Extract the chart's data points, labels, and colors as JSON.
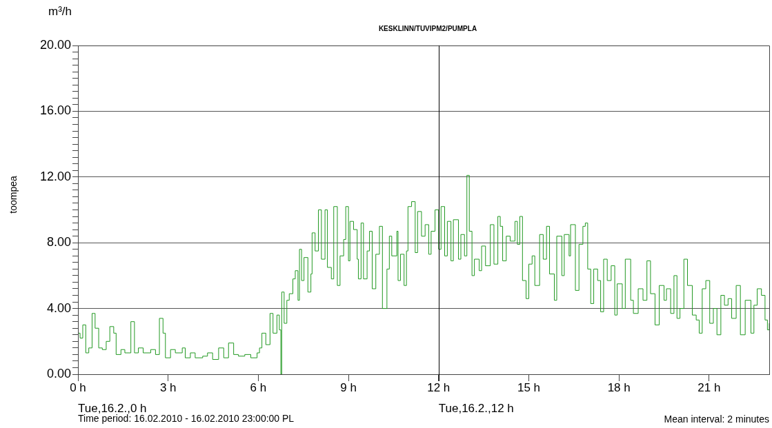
{
  "chart_data": {
    "type": "step",
    "title": "KESKLINN/TUVIPM2/PUMPLA",
    "ylabel": "toompea",
    "annotations": [
      "Tue,16.2.,0 h",
      "Tue,16.2.,12 h",
      "Time period: 16.02.2010 - 16.02.2010 23:00:00 PL",
      "Mean interval: 2 minutes",
      "m³/h"
    ],
    "xlim": [
      0,
      23
    ],
    "xticks": [
      {
        "value": 0,
        "label": "0 h"
      },
      {
        "value": 3,
        "label": "3 h"
      },
      {
        "value": 6,
        "label": "6 h"
      },
      {
        "value": 9,
        "label": "9 h"
      },
      {
        "value": 12,
        "label": "12 h"
      },
      {
        "value": 15,
        "label": "15 h"
      },
      {
        "value": 18,
        "label": "18 h"
      },
      {
        "value": 21,
        "label": "21 h"
      }
    ],
    "ylim": [
      0,
      20
    ],
    "yticks": [
      {
        "value": 0,
        "label": "0.00"
      },
      {
        "value": 0.4,
        "label": null
      },
      {
        "value": 0.8,
        "label": null
      },
      {
        "value": 1.2,
        "label": null
      },
      {
        "value": 1.6,
        "label": null
      },
      {
        "value": 2,
        "label": null
      },
      {
        "value": 2.4,
        "label": null
      },
      {
        "value": 2.8,
        "label": null
      },
      {
        "value": 3.2,
        "label": null
      },
      {
        "value": 3.6,
        "label": null
      },
      {
        "value": 4,
        "label": "4.00"
      },
      {
        "value": 4.4,
        "label": null
      },
      {
        "value": 4.8,
        "label": null
      },
      {
        "value": 5.2,
        "label": null
      },
      {
        "value": 5.6,
        "label": null
      },
      {
        "value": 6,
        "label": null
      },
      {
        "value": 6.4,
        "label": null
      },
      {
        "value": 6.8,
        "label": null
      },
      {
        "value": 7.2,
        "label": null
      },
      {
        "value": 7.6,
        "label": null
      },
      {
        "value": 8,
        "label": "8.00"
      },
      {
        "value": 8.4,
        "label": null
      },
      {
        "value": 8.8,
        "label": null
      },
      {
        "value": 9.2,
        "label": null
      },
      {
        "value": 9.6,
        "label": null
      },
      {
        "value": 10,
        "label": null
      },
      {
        "value": 10.4,
        "label": null
      },
      {
        "value": 10.8,
        "label": null
      },
      {
        "value": 11.2,
        "label": null
      },
      {
        "value": 11.6,
        "label": null
      },
      {
        "value": 12,
        "label": "12.00"
      },
      {
        "value": 12.4,
        "label": null
      },
      {
        "value": 12.8,
        "label": null
      },
      {
        "value": 13.2,
        "label": null
      },
      {
        "value": 13.6,
        "label": null
      },
      {
        "value": 14,
        "label": null
      },
      {
        "value": 14.4,
        "label": null
      },
      {
        "value": 14.8,
        "label": null
      },
      {
        "value": 15.2,
        "label": null
      },
      {
        "value": 15.6,
        "label": null
      },
      {
        "value": 16,
        "label": "16.00"
      },
      {
        "value": 16.4,
        "label": null
      },
      {
        "value": 16.8,
        "label": null
      },
      {
        "value": 17.2,
        "label": null
      },
      {
        "value": 17.6,
        "label": null
      },
      {
        "value": 18,
        "label": null
      },
      {
        "value": 18.4,
        "label": null
      },
      {
        "value": 18.8,
        "label": null
      },
      {
        "value": 19.2,
        "label": null
      },
      {
        "value": 19.6,
        "label": null
      },
      {
        "value": 20,
        "label": "20.00"
      }
    ],
    "grid": "y",
    "legend": false,
    "ref_lines": [
      {
        "axis": "x",
        "value": 12,
        "color": "#000000"
      }
    ],
    "series": [
      {
        "color": "#229922",
        "x": [
          0,
          0.07,
          0.16,
          0.26,
          0.36,
          0.47,
          0.57,
          0.69,
          0.81,
          0.94,
          1.06,
          1.19,
          1.27,
          1.43,
          1.56,
          1.76,
          1.88,
          2.01,
          2.17,
          2.42,
          2.58,
          2.71,
          2.83,
          2.91,
          3.08,
          3.24,
          3.47,
          3.57,
          3.74,
          3.9,
          4.15,
          4.31,
          4.48,
          4.68,
          4.85,
          5.01,
          5.18,
          5.34,
          5.55,
          5.75,
          5.96,
          6.04,
          6.12,
          6.25,
          6.39,
          6.49,
          6.62,
          6.7,
          6.75,
          6.78,
          6.86,
          6.95,
          7.03,
          7.15,
          7.23,
          7.32,
          7.37,
          7.44,
          7.52,
          7.65,
          7.75,
          7.79,
          7.89,
          8,
          8.1,
          8.22,
          8.3,
          8.43,
          8.51,
          8.63,
          8.72,
          8.84,
          8.91,
          9,
          9.05,
          9.17,
          9.29,
          9.33,
          9.42,
          9.5,
          9.62,
          9.7,
          9.79,
          9.91,
          10.03,
          10.13,
          10.28,
          10.36,
          10.44,
          10.61,
          10.65,
          10.73,
          10.85,
          10.93,
          10.98,
          11.1,
          11.22,
          11.3,
          11.43,
          11.55,
          11.67,
          11.75,
          11.88,
          12,
          12.08,
          12.2,
          12.29,
          12.41,
          12.49,
          12.66,
          12.74,
          12.86,
          12.94,
          13.02,
          13.11,
          13.19,
          13.35,
          13.43,
          13.56,
          13.72,
          13.84,
          13.97,
          14.05,
          14.13,
          14.25,
          14.38,
          14.54,
          14.62,
          14.7,
          14.79,
          14.91,
          15,
          15.11,
          15.2,
          15.36,
          15.48,
          15.59,
          15.69,
          15.85,
          15.93,
          16.1,
          16.18,
          16.34,
          16.39,
          16.55,
          16.67,
          16.8,
          16.88,
          16.96,
          17.06,
          17.16,
          17.29,
          17.39,
          17.49,
          17.61,
          17.74,
          17.86,
          17.94,
          18.11,
          18.21,
          18.39,
          18.48,
          18.64,
          18.8,
          18.93,
          19.05,
          19.2,
          19.34,
          19.5,
          19.58,
          19.72,
          19.83,
          19.93,
          20.03,
          20.16,
          20.28,
          20.44,
          20.57,
          20.67,
          20.77,
          20.89,
          21.02,
          21.14,
          21.26,
          21.39,
          21.51,
          21.63,
          21.75,
          21.9,
          22.04,
          22.2,
          22.39,
          22.49,
          22.6,
          22.74,
          22.86,
          22.94,
          23
        ],
        "values": [
          2.5,
          2.2,
          3,
          1.3,
          1.6,
          3.7,
          2.8,
          1.6,
          1.5,
          2,
          2.9,
          2.5,
          1.2,
          1.5,
          1.3,
          3.2,
          1.3,
          1.6,
          1.3,
          1.5,
          1.2,
          3.4,
          2.5,
          1,
          1.5,
          1.3,
          1.6,
          1,
          1.3,
          1,
          1.1,
          1.3,
          0.9,
          1.6,
          1,
          1.9,
          1.2,
          1.1,
          1.2,
          1,
          1.3,
          1.6,
          2.5,
          1.8,
          3.7,
          2.5,
          3.6,
          2.7,
          0,
          5,
          3.1,
          4.5,
          4.9,
          5.8,
          6.3,
          4.5,
          7.6,
          5.7,
          7.1,
          5,
          6.1,
          8.6,
          7.5,
          10,
          7,
          10,
          6.5,
          5.8,
          10.2,
          5.4,
          7.2,
          8.2,
          10.2,
          6.9,
          9.3,
          8.8,
          7,
          5.8,
          9.2,
          5.8,
          7.5,
          8.7,
          5.2,
          7.3,
          9,
          4,
          6.4,
          8.4,
          7.2,
          8.7,
          5.7,
          7.3,
          5.4,
          7.5,
          10.2,
          10.5,
          7.4,
          9.9,
          8.4,
          9.1,
          7.3,
          8.7,
          10,
          7.6,
          10.2,
          7.2,
          9.3,
          6.9,
          9.4,
          7,
          8.5,
          7.2,
          12.1,
          8.7,
          6,
          7,
          6.3,
          7.8,
          6.6,
          9.1,
          6.7,
          9.6,
          9,
          6.9,
          8.4,
          8.1,
          9.3,
          7.9,
          9.6,
          5.7,
          4.6,
          6.7,
          7.2,
          5.4,
          8.5,
          7,
          9,
          6.1,
          4.5,
          8.4,
          6,
          8.5,
          7.2,
          9.1,
          5.1,
          7.9,
          9,
          9.2,
          6.4,
          4.3,
          6.4,
          5.7,
          3.8,
          7,
          5.7,
          6.6,
          3.6,
          5.5,
          4,
          7,
          4.5,
          3.7,
          5.2,
          4.5,
          6.9,
          4.9,
          3,
          5.4,
          4.5,
          5.2,
          3.7,
          6,
          3.4,
          4,
          7,
          5.4,
          3.6,
          3.3,
          2.5,
          5.2,
          5.7,
          3.1,
          4,
          2.4,
          4.8,
          4.2,
          4.6,
          3.4,
          5.4,
          2.4,
          4.5,
          2.5,
          4.2,
          5.2,
          4.8,
          3.3,
          2.7,
          3.1
        ]
      }
    ]
  }
}
